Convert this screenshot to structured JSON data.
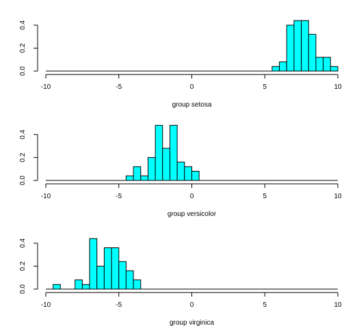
{
  "chart_data": [
    {
      "type": "histogram",
      "xlabel": "group setosa",
      "xlim": [
        -10,
        10
      ],
      "ylim": [
        0,
        0.5
      ],
      "x_ticks": [
        -10,
        -5,
        0,
        5,
        10
      ],
      "x_tick_labels": [
        "-10",
        "-5",
        "0",
        "5",
        "10"
      ],
      "y_ticks": [
        0.0,
        0.2,
        0.4
      ],
      "y_tick_labels": [
        "0.0",
        "0.2",
        "0.4"
      ],
      "bin_width": 0.5,
      "bins": [
        {
          "x0": 5.5,
          "x1": 6.0,
          "density": 0.04
        },
        {
          "x0": 6.0,
          "x1": 6.5,
          "density": 0.08
        },
        {
          "x0": 6.5,
          "x1": 7.0,
          "density": 0.4
        },
        {
          "x0": 7.0,
          "x1": 7.5,
          "density": 0.44
        },
        {
          "x0": 7.5,
          "x1": 8.0,
          "density": 0.44
        },
        {
          "x0": 8.0,
          "x1": 8.5,
          "density": 0.32
        },
        {
          "x0": 8.5,
          "x1": 9.0,
          "density": 0.12
        },
        {
          "x0": 9.0,
          "x1": 9.5,
          "density": 0.12
        },
        {
          "x0": 9.5,
          "x1": 10.0,
          "density": 0.04
        }
      ]
    },
    {
      "type": "histogram",
      "xlabel": "group versicolor",
      "xlim": [
        -10,
        10
      ],
      "ylim": [
        0,
        0.5
      ],
      "x_ticks": [
        -10,
        -5,
        0,
        5,
        10
      ],
      "x_tick_labels": [
        "-10",
        "-5",
        "0",
        "5",
        "10"
      ],
      "y_ticks": [
        0.0,
        0.2,
        0.4
      ],
      "y_tick_labels": [
        "0.0",
        "0.2",
        "0.4"
      ],
      "bin_width": 0.5,
      "bins": [
        {
          "x0": -4.5,
          "x1": -4.0,
          "density": 0.04
        },
        {
          "x0": -4.0,
          "x1": -3.5,
          "density": 0.12
        },
        {
          "x0": -3.5,
          "x1": -3.0,
          "density": 0.04
        },
        {
          "x0": -3.0,
          "x1": -2.5,
          "density": 0.2
        },
        {
          "x0": -2.5,
          "x1": -2.0,
          "density": 0.48
        },
        {
          "x0": -2.0,
          "x1": -1.5,
          "density": 0.28
        },
        {
          "x0": -1.5,
          "x1": -1.0,
          "density": 0.48
        },
        {
          "x0": -1.0,
          "x1": -0.5,
          "density": 0.16
        },
        {
          "x0": -0.5,
          "x1": 0.0,
          "density": 0.12
        },
        {
          "x0": 0.0,
          "x1": 0.5,
          "density": 0.08
        }
      ]
    },
    {
      "type": "histogram",
      "xlabel": "group virginica",
      "xlim": [
        -10,
        10
      ],
      "ylim": [
        0,
        0.5
      ],
      "x_ticks": [
        -10,
        -5,
        0,
        5,
        10
      ],
      "x_tick_labels": [
        "-10",
        "-5",
        "0",
        "5",
        "10"
      ],
      "y_ticks": [
        0.0,
        0.2,
        0.4
      ],
      "y_tick_labels": [
        "0.0",
        "0.2",
        "0.4"
      ],
      "bin_width": 0.5,
      "bins": [
        {
          "x0": -9.5,
          "x1": -9.0,
          "density": 0.04
        },
        {
          "x0": -8.0,
          "x1": -7.5,
          "density": 0.08
        },
        {
          "x0": -7.5,
          "x1": -7.0,
          "density": 0.04
        },
        {
          "x0": -7.0,
          "x1": -6.5,
          "density": 0.44
        },
        {
          "x0": -6.5,
          "x1": -6.0,
          "density": 0.2
        },
        {
          "x0": -6.0,
          "x1": -5.5,
          "density": 0.36
        },
        {
          "x0": -5.5,
          "x1": -5.0,
          "density": 0.36
        },
        {
          "x0": -5.0,
          "x1": -4.5,
          "density": 0.24
        },
        {
          "x0": -4.5,
          "x1": -4.0,
          "density": 0.16
        },
        {
          "x0": -4.0,
          "x1": -3.5,
          "density": 0.08
        }
      ]
    }
  ],
  "colors": {
    "bar_fill": "#00ffff",
    "bar_stroke": "#000000"
  }
}
